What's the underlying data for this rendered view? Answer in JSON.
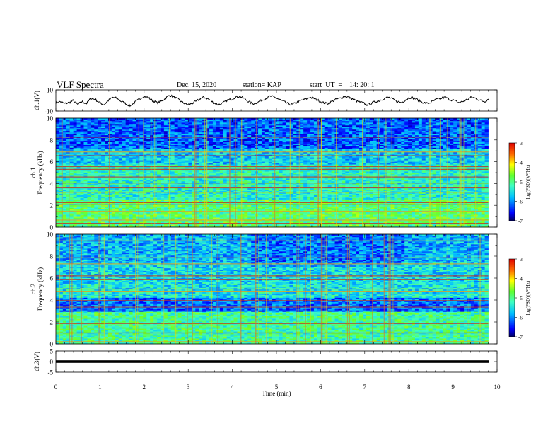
{
  "header": {
    "title": "VLF Spectra",
    "date": "Dec. 15, 2020",
    "station": "station= KAP",
    "start": "start  UT  =    14: 20: 1"
  },
  "chart_data": [
    {
      "type": "line",
      "name": "ch1-waveform",
      "ylabel": "ch.1(V)",
      "ylim": [
        -10,
        10
      ],
      "yticks": [
        "10",
        "-10"
      ],
      "xlim": [
        0,
        10
      ],
      "values": [
        -2,
        -1,
        -3,
        -2,
        0,
        -4,
        -1,
        -3,
        2,
        1,
        -2,
        -4,
        0,
        3,
        2,
        -1,
        -3,
        -5,
        -2,
        1,
        4,
        3,
        0,
        -2,
        -1,
        2,
        5,
        3,
        1,
        -2,
        -4,
        -3,
        -1,
        2,
        3,
        1,
        -2,
        -4,
        -3,
        0,
        1,
        3,
        4,
        2,
        -1,
        -3,
        -2,
        0,
        2,
        4,
        3,
        1,
        -1,
        -3,
        -4,
        -2,
        0,
        1,
        3,
        2,
        0,
        -2,
        -3,
        -1,
        1,
        2,
        4,
        3,
        1,
        -1,
        -2,
        -4,
        -3,
        -1,
        0,
        2,
        3,
        1,
        -1,
        -2,
        1,
        3,
        2,
        0,
        -2,
        -3,
        -1,
        1,
        2,
        3,
        1,
        0,
        -2,
        -1,
        1,
        3,
        2,
        0,
        -1,
        2
      ]
    },
    {
      "type": "heatmap",
      "name": "ch1-spectrogram",
      "ylabel": "ch.1\nFrequency (kHz)",
      "ylim": [
        0,
        10
      ],
      "yticks": [
        "0",
        "2",
        "4",
        "6",
        "8",
        "10"
      ],
      "xlim": [
        0,
        9.8
      ],
      "colorbar": {
        "label": "log(PSD)(V²/Hz)",
        "ticks": [
          "-3",
          "-4",
          "-5",
          "-6",
          "-7"
        ],
        "range": [
          -7,
          -3
        ]
      }
    },
    {
      "type": "heatmap",
      "name": "ch2-spectrogram",
      "ylabel": "ch.2\nFrequency (kHz)",
      "ylim": [
        0,
        10
      ],
      "yticks": [
        "0",
        "2",
        "4",
        "6",
        "8",
        "10"
      ],
      "xlim": [
        0,
        9.8
      ],
      "colorbar": {
        "label": "log(PSD)(V²/Hz)",
        "ticks": [
          "-3",
          "-4",
          "-5",
          "-6",
          "-7"
        ],
        "range": [
          -7,
          -3
        ]
      }
    },
    {
      "type": "line",
      "name": "ch3-waveform",
      "ylabel": "ch.3(V)",
      "ylim": [
        -5,
        5
      ],
      "yticks": [
        "5",
        "0",
        "-5"
      ],
      "xlim": [
        0,
        10
      ],
      "values": [
        0,
        0
      ]
    }
  ],
  "xaxis": {
    "label": "Time  (min)",
    "ticks": [
      "0",
      "1",
      "2",
      "3",
      "4",
      "5",
      "6",
      "7",
      "8",
      "9",
      "10"
    ]
  }
}
